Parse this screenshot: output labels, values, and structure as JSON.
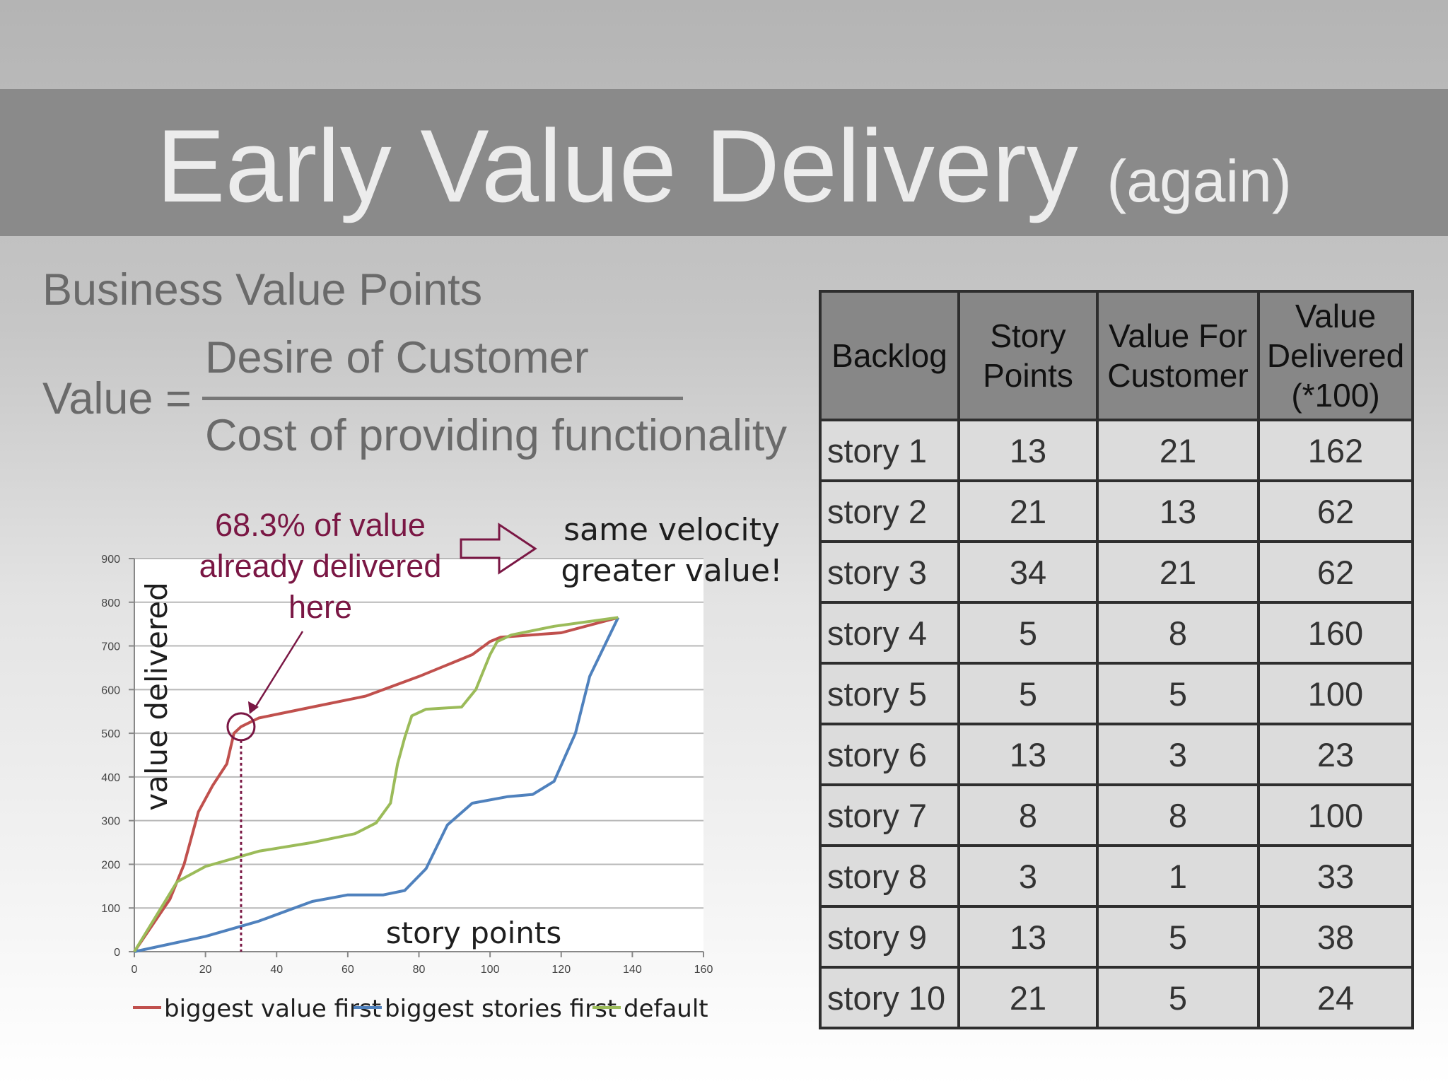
{
  "slide": {
    "title_main": "Early Value Delivery",
    "title_sub": "(again)",
    "subtitle": "Business Value Points",
    "formula": {
      "label": "Value =",
      "numerator": "Desire of Customer",
      "denominator": "Cost of providing functionality"
    }
  },
  "table": {
    "headers": [
      "Backlog",
      "Story Points",
      "Value For Customer",
      "Value Delivered (*100)"
    ],
    "rows": [
      [
        "story 1",
        "13",
        "21",
        "162"
      ],
      [
        "story 2",
        "21",
        "13",
        "62"
      ],
      [
        "story 3",
        "34",
        "21",
        "62"
      ],
      [
        "story 4",
        "5",
        "8",
        "160"
      ],
      [
        "story 5",
        "5",
        "5",
        "100"
      ],
      [
        "story 6",
        "13",
        "3",
        "23"
      ],
      [
        "story 7",
        "8",
        "8",
        "100"
      ],
      [
        "story 8",
        "3",
        "1",
        "33"
      ],
      [
        "story 9",
        "13",
        "5",
        "38"
      ],
      [
        "story 10",
        "21",
        "5",
        "24"
      ]
    ]
  },
  "annotations": {
    "callout_lines": [
      "68.3% of value",
      "already delivered",
      "here"
    ],
    "velocity_lines": [
      "same velocity",
      "greater value!"
    ],
    "callout_x": 30,
    "callout_y": 515
  },
  "colors": {
    "red": "#c0504d",
    "blue": "#4f81bd",
    "green": "#9bbb59",
    "callout": "#7a1744"
  },
  "chart_data": {
    "type": "line",
    "xlabel": "story points",
    "ylabel": "value delivered",
    "xlim": [
      0,
      160
    ],
    "ylim": [
      0,
      900
    ],
    "xticks": [
      0,
      20,
      40,
      60,
      80,
      100,
      120,
      140,
      160
    ],
    "yticks": [
      0,
      100,
      200,
      300,
      400,
      500,
      600,
      700,
      800,
      900
    ],
    "grid": "horizontal",
    "legend": "bottom",
    "series": [
      {
        "name": "biggest value first",
        "color": "#c0504d",
        "points": [
          [
            0,
            0
          ],
          [
            10,
            120
          ],
          [
            14,
            200
          ],
          [
            18,
            320
          ],
          [
            22,
            380
          ],
          [
            26,
            430
          ],
          [
            28,
            500
          ],
          [
            30,
            515
          ],
          [
            35,
            535
          ],
          [
            50,
            560
          ],
          [
            65,
            585
          ],
          [
            80,
            630
          ],
          [
            95,
            680
          ],
          [
            100,
            710
          ],
          [
            103,
            720
          ],
          [
            120,
            730
          ],
          [
            136,
            765
          ]
        ]
      },
      {
        "name": "biggest stories first",
        "color": "#4f81bd",
        "points": [
          [
            0,
            0
          ],
          [
            20,
            35
          ],
          [
            35,
            70
          ],
          [
            50,
            115
          ],
          [
            60,
            130
          ],
          [
            70,
            130
          ],
          [
            76,
            140
          ],
          [
            82,
            190
          ],
          [
            88,
            290
          ],
          [
            95,
            340
          ],
          [
            105,
            355
          ],
          [
            112,
            360
          ],
          [
            118,
            390
          ],
          [
            124,
            500
          ],
          [
            128,
            630
          ],
          [
            136,
            765
          ]
        ]
      },
      {
        "name": "default",
        "color": "#9bbb59",
        "points": [
          [
            0,
            0
          ],
          [
            12,
            160
          ],
          [
            20,
            195
          ],
          [
            35,
            230
          ],
          [
            50,
            250
          ],
          [
            62,
            270
          ],
          [
            68,
            295
          ],
          [
            72,
            340
          ],
          [
            74,
            430
          ],
          [
            76,
            490
          ],
          [
            78,
            540
          ],
          [
            82,
            555
          ],
          [
            92,
            560
          ],
          [
            96,
            600
          ],
          [
            100,
            680
          ],
          [
            102,
            710
          ],
          [
            106,
            725
          ],
          [
            118,
            745
          ],
          [
            136,
            765
          ]
        ]
      }
    ]
  }
}
